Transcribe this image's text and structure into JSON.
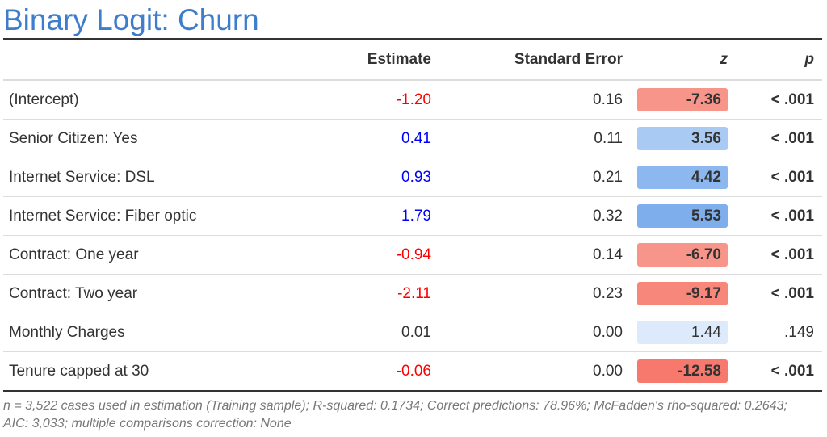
{
  "title": "Binary Logit: Churn",
  "headers": {
    "estimate": "Estimate",
    "standard_error": "Standard Error",
    "z": "z",
    "p": "p"
  },
  "rows": [
    {
      "label": "(Intercept)",
      "estimate": "-1.20",
      "estimate_sign": "neg",
      "se": "0.16",
      "z": "-7.36",
      "z_color": "#f8958a",
      "z_bold": true,
      "p": "< .001",
      "p_bold": true
    },
    {
      "label": "Senior Citizen: Yes",
      "estimate": "0.41",
      "estimate_sign": "pos",
      "se": "0.11",
      "z": "3.56",
      "z_color": "#a9cbf3",
      "z_bold": true,
      "p": "< .001",
      "p_bold": true
    },
    {
      "label": "Internet Service: DSL",
      "estimate": "0.93",
      "estimate_sign": "pos",
      "se": "0.21",
      "z": "4.42",
      "z_color": "#8cb8ef",
      "z_bold": true,
      "p": "< .001",
      "p_bold": true
    },
    {
      "label": "Internet Service: Fiber optic",
      "estimate": "1.79",
      "estimate_sign": "pos",
      "se": "0.32",
      "z": "5.53",
      "z_color": "#7eaeec",
      "z_bold": true,
      "p": "< .001",
      "p_bold": true
    },
    {
      "label": "Contract: One year",
      "estimate": "-0.94",
      "estimate_sign": "neg",
      "se": "0.14",
      "z": "-6.70",
      "z_color": "#f8958a",
      "z_bold": true,
      "p": "< .001",
      "p_bold": true
    },
    {
      "label": "Contract: Two year",
      "estimate": "-2.11",
      "estimate_sign": "neg",
      "se": "0.23",
      "z": "-9.17",
      "z_color": "#f8877b",
      "z_bold": true,
      "p": "< .001",
      "p_bold": true
    },
    {
      "label": "Monthly Charges",
      "estimate": "0.01",
      "estimate_sign": "none",
      "se": "0.00",
      "z": "1.44",
      "z_color": "#ddeafb",
      "z_bold": false,
      "p": ".149",
      "p_bold": false
    },
    {
      "label": "Tenure capped at 30",
      "estimate": "-0.06",
      "estimate_sign": "neg",
      "se": "0.00",
      "z": "-12.58",
      "z_color": "#f7796d",
      "z_bold": true,
      "p": "< .001",
      "p_bold": true
    }
  ],
  "footnote": "n = 3,522 cases used in estimation (Training sample); R-squared: 0.1734; Correct predictions: 78.96%; McFadden's rho-squared: 0.2643; AIC: 3,033; multiple comparisons correction: None"
}
